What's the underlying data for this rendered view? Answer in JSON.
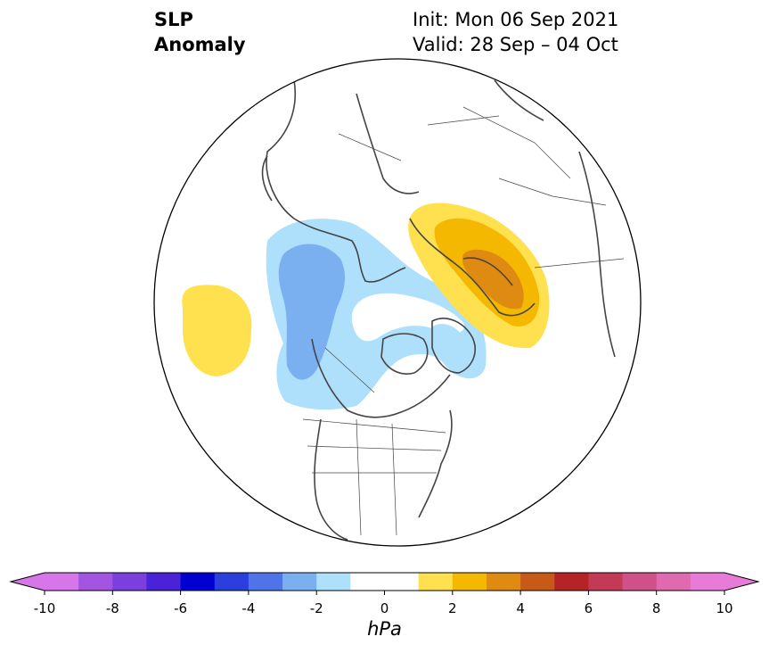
{
  "title": {
    "left_line1": "SLP",
    "left_line2": "Anomaly",
    "init": "Init: Mon 06 Sep 2021",
    "valid": "Valid: 28 Sep – 04 Oct"
  },
  "colorbar": {
    "unit": "hPa",
    "min": -10,
    "max": 10,
    "step": 1,
    "tick_labels": [
      "-10",
      "-8",
      "-6",
      "-4",
      "-2",
      "0",
      "2",
      "4",
      "6",
      "8",
      "10"
    ],
    "colors": [
      "#d676e8",
      "#a354e0",
      "#7a3fdc",
      "#4a22d8",
      "#0000d0",
      "#2a3fdc",
      "#4f74e8",
      "#7ab0f0",
      "#aee0fc",
      "#ffffff",
      "#ffffff",
      "#ffe14f",
      "#f5b800",
      "#df8a10",
      "#c85a18",
      "#b42424",
      "#c23a55",
      "#d05088",
      "#e06ab0",
      "#e87ad8"
    ],
    "under_color": "#d676e8",
    "over_color": "#e87ad8"
  },
  "map": {
    "projection": "north-polar-stereographic",
    "anomalies": [
      {
        "region": "Central North Pacific",
        "sign": "positive",
        "peak_hpa": 1.5
      },
      {
        "region": "Gulf of Alaska / NW Canada",
        "sign": "negative",
        "peak_hpa": -3
      },
      {
        "region": "Greenland / Baffin Bay",
        "sign": "negative",
        "peak_hpa": -1.5
      },
      {
        "region": "Scandinavia / Northern Europe",
        "sign": "positive",
        "peak_hpa": 4
      }
    ]
  }
}
